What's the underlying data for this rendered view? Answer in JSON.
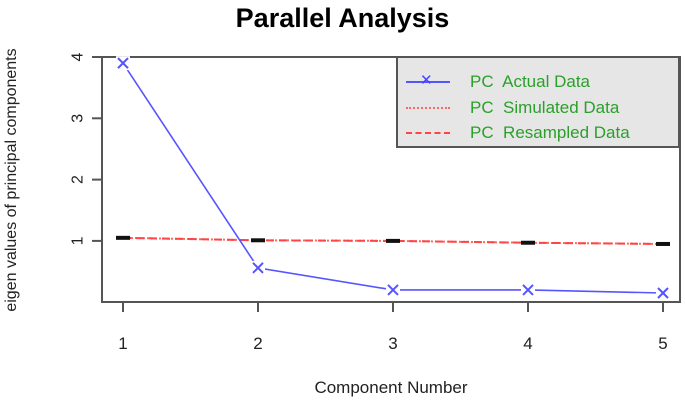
{
  "chart_data": {
    "type": "line",
    "title": "Parallel Analysis",
    "xlabel": "Component Number",
    "ylabel": "eigen values of principal components",
    "x": [
      1,
      2,
      3,
      4,
      5
    ],
    "x_ticks": [
      "1",
      "2",
      "3",
      "4",
      "5"
    ],
    "y_ticks": [
      "1",
      "2",
      "3",
      "4"
    ],
    "ylim": [
      0,
      4
    ],
    "grid": false,
    "legend_position": "top-right",
    "series": [
      {
        "name": "PC  Actual Data",
        "style": "solid-x-markers",
        "color": "#5555ff",
        "values": [
          3.9,
          0.56,
          0.2,
          0.2,
          0.15
        ]
      },
      {
        "name": "PC  Simulated Data",
        "style": "dotted",
        "color": "#ff6666",
        "values": [
          1.05,
          1.01,
          1.0,
          0.97,
          0.95
        ]
      },
      {
        "name": "PC  Resampled Data",
        "style": "dashed",
        "color": "#ff4444",
        "values": [
          1.05,
          1.01,
          1.0,
          0.97,
          0.95
        ]
      }
    ]
  },
  "colors": {
    "legend_text": "#2aa02a",
    "legend_bg": "#e6e6e6",
    "axis": "#555555"
  }
}
